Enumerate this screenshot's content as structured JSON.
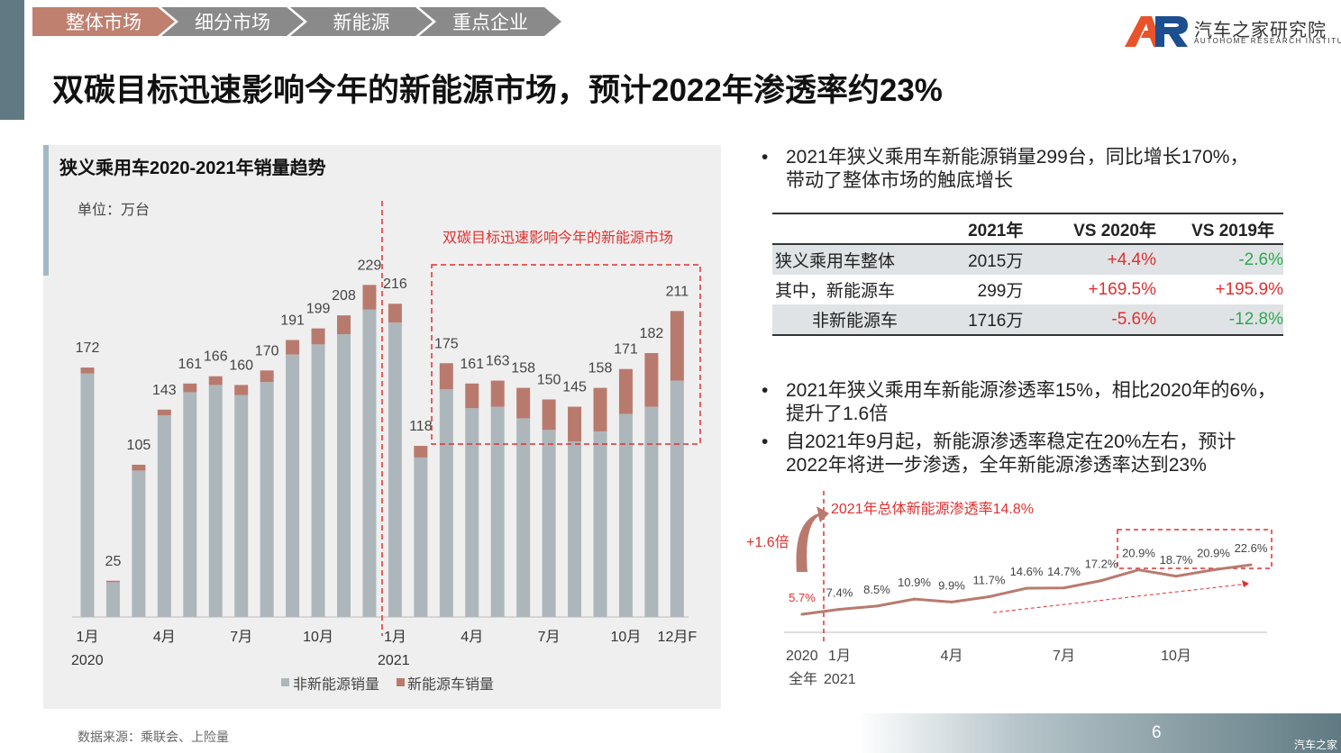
{
  "nav": {
    "tabs": [
      {
        "label": "整体市场",
        "color": "#c0806f"
      },
      {
        "label": "细分市场",
        "color": "#8a8a8a"
      },
      {
        "label": "新能源",
        "color": "#8a8a8a"
      },
      {
        "label": "重点企业",
        "color": "#8a8a8a"
      }
    ]
  },
  "logo": {
    "cn": "汽车之家研究院",
    "en": "AUTOHOME RESEARCH INSTITUTE"
  },
  "title": "双碳目标迅速影响今年的新能源市场，预计2022年渗透率约23%",
  "left_chart": {
    "title": "狭义乘用车2020-2021年销量趋势",
    "unit": "单位：万台",
    "annotation": "双碳目标迅速影响今年的新能源市场",
    "legend_non_nev": "非新能源销量",
    "legend_nev": "新能源车销量",
    "year_2020": "2020",
    "year_2021": "2021"
  },
  "right_chart": {
    "annotation": "2021年总体新能源渗透率14.8%",
    "growth_label": "+1.6倍",
    "x_2020": "2020",
    "x_full_year": "全年",
    "x_2021": "2021"
  },
  "chart_data": [
    {
      "type": "bar",
      "stacked": true,
      "title": "狭义乘用车2020-2021年销量趋势",
      "ylabel": "万台",
      "categories": [
        "2020-1",
        "2020-2",
        "2020-3",
        "2020-4",
        "2020-5",
        "2020-6",
        "2020-7",
        "2020-8",
        "2020-9",
        "2020-10",
        "2020-11",
        "2020-12",
        "2021-1",
        "2021-2",
        "2021-3",
        "2021-4",
        "2021-5",
        "2021-6",
        "2021-7",
        "2021-8",
        "2021-9",
        "2021-10",
        "2021-11",
        "2021-12F"
      ],
      "tick_labels": [
        "1月",
        "",
        "",
        "4月",
        "",
        "",
        "7月",
        "",
        "",
        "10月",
        "",
        "",
        "1月",
        "",
        "",
        "4月",
        "",
        "",
        "7月",
        "",
        "",
        "10月",
        "",
        "12月F"
      ],
      "totals": [
        172,
        25,
        105,
        143,
        161,
        166,
        160,
        170,
        191,
        199,
        208,
        229,
        216,
        118,
        175,
        161,
        163,
        158,
        150,
        145,
        158,
        171,
        182,
        211
      ],
      "series": [
        {
          "name": "非新能源销量",
          "color": "#adb6bb",
          "values": [
            168,
            24,
            101,
            139,
            155,
            160,
            153,
            162,
            181,
            188,
            195,
            212,
            203,
            110,
            157,
            144,
            145,
            137,
            129,
            121,
            128,
            140,
            145,
            163
          ]
        },
        {
          "name": "新能源车销量",
          "color": "#b97a6e",
          "values": [
            4,
            1,
            4,
            4,
            6,
            6,
            7,
            8,
            10,
            11,
            13,
            17,
            13,
            8,
            18,
            17,
            18,
            21,
            21,
            24,
            30,
            31,
            37,
            48
          ]
        }
      ],
      "ylim": [
        0,
        240
      ]
    },
    {
      "type": "line",
      "title": "2021年总体新能源渗透率14.8%",
      "ylabel": "%",
      "x": [
        "2020全年",
        "2021-1",
        "2021-2",
        "2021-3",
        "2021-4",
        "2021-5",
        "2021-6",
        "2021-7",
        "2021-8",
        "2021-9",
        "2021-10",
        "2021-11",
        "2021-12"
      ],
      "tick_labels": [
        "1月",
        "4月",
        "7月",
        "10月"
      ],
      "tick_index": [
        1,
        4,
        7,
        10
      ],
      "labels": [
        "5.7%",
        "7.4%",
        "8.5%",
        "10.9%",
        "9.9%",
        "11.7%",
        "14.6%",
        "14.7%",
        "17.2%",
        "20.9%",
        "18.7%",
        "20.9%",
        "22.6%"
      ],
      "values": [
        5.7,
        7.4,
        8.5,
        10.9,
        9.9,
        11.7,
        14.6,
        14.7,
        17.2,
        20.9,
        18.7,
        20.9,
        22.6
      ],
      "ylim": [
        0,
        30
      ]
    }
  ],
  "bullets": {
    "b1_line1": "2021年狭义乘用车新能源销量299台，同比增长170%，",
    "b1_line2": "带动了整体市场的触底增长",
    "b2_line1": "2021年狭义乘用车新能源渗透率15%，相比2020年的6%，",
    "b2_line2": "提升了1.6倍",
    "b3_line1": "自2021年9月起，新能源渗透率稳定在20%左右，预计",
    "b3_line2": "2022年将进一步渗透，全年新能源渗透率达到23%"
  },
  "table": {
    "headers": [
      "",
      "2021年",
      "VS 2020年",
      "VS 2019年"
    ],
    "rows": [
      {
        "label": "狭义乘用车整体",
        "v2021": "2015万",
        "vs2020": "+4.4%",
        "vs2019": "-2.6%"
      },
      {
        "label": "其中，新能源车",
        "v2021": "299万",
        "vs2020": "+169.5%",
        "vs2019": "+195.9%"
      },
      {
        "label": "非新能源车",
        "v2021": "1716万",
        "vs2020": "-5.6%",
        "vs2019": "-12.8%"
      }
    ]
  },
  "colors": {
    "red": "#e03030",
    "green": "#2fa84f",
    "accent": "#c0806f",
    "line": "#b97a6e"
  },
  "source": "数据来源：乘联会、上险量",
  "page_number": "6",
  "watermark": "汽车之家"
}
